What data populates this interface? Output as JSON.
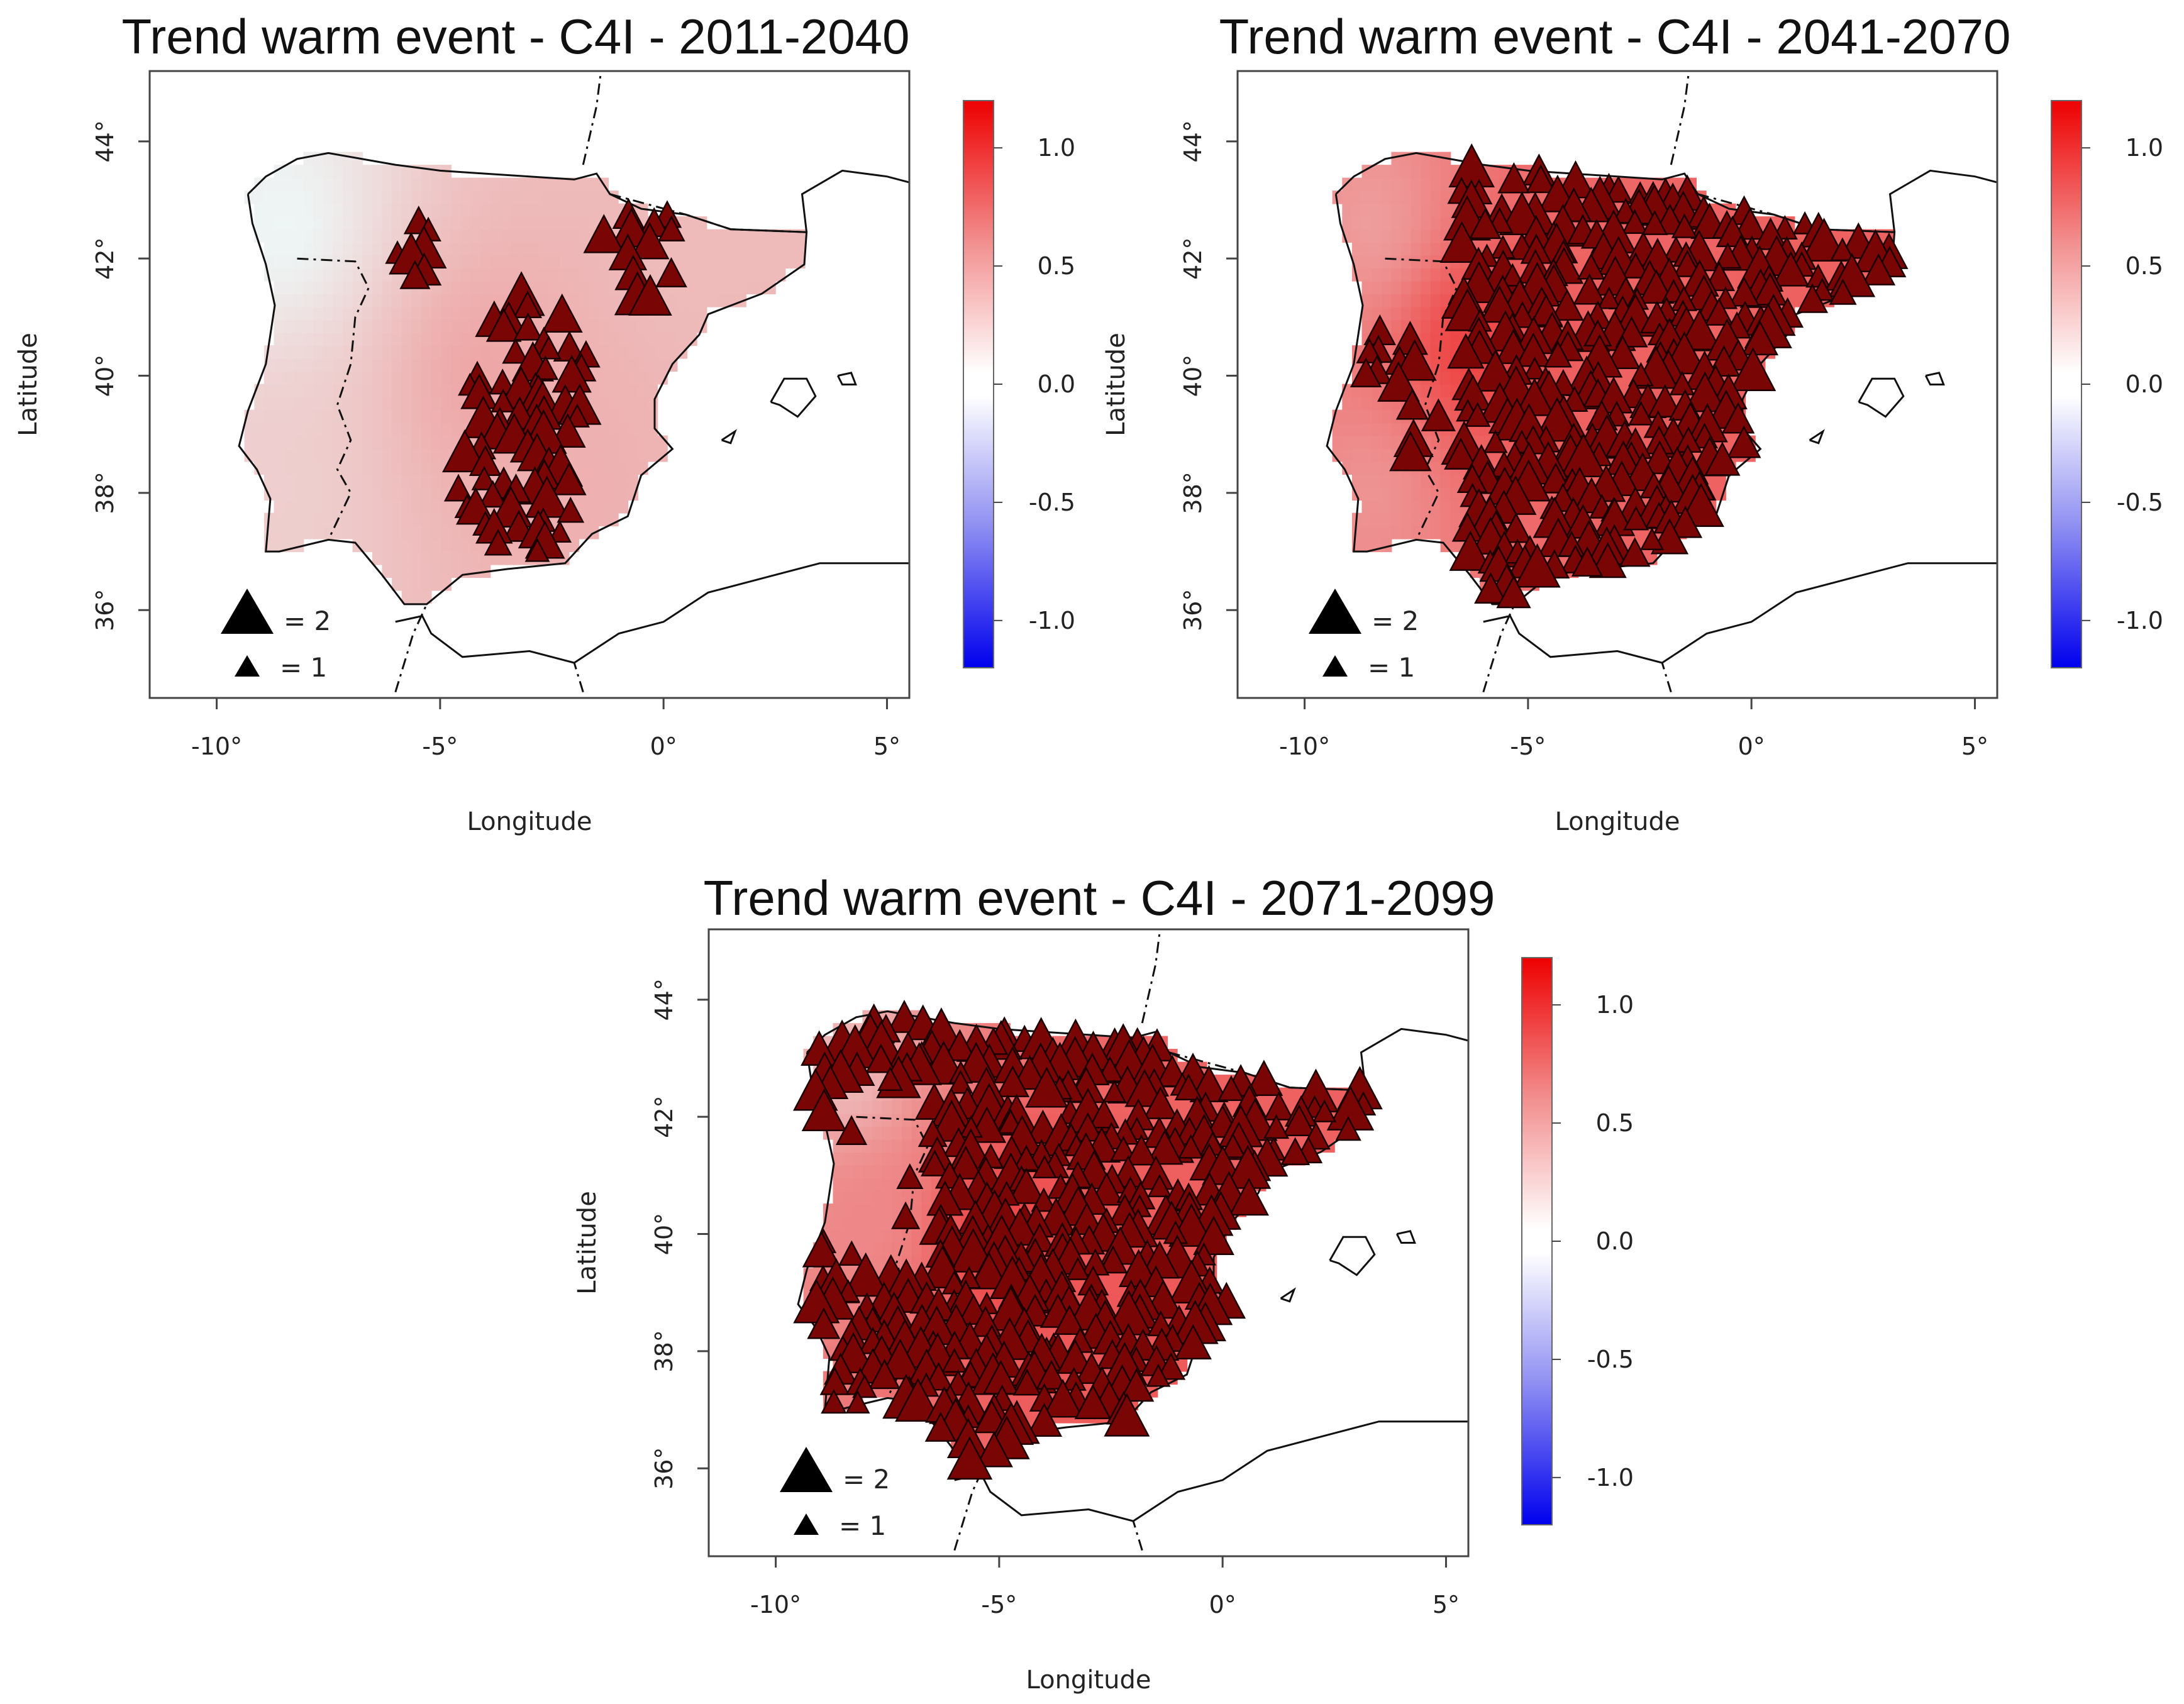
{
  "figure": {
    "colors": {
      "marker": "#7a0505",
      "marker_edge": "#1a0000",
      "cb_low": "#0000ee",
      "cb_mid": "#ffffff",
      "cb_high": "#ee0000"
    }
  },
  "chart_data": [
    {
      "type": "scatter",
      "title": "Trend warm event - C4I - 2011-2040",
      "xlabel": "Longitude",
      "ylabel": "Latitude",
      "xlim": [
        -11.5,
        5.5
      ],
      "ylim": [
        34.5,
        45.2
      ],
      "x_ticks": [
        "-10°",
        "-5°",
        "0°",
        "5°"
      ],
      "y_ticks": [
        "36°",
        "38°",
        "40°",
        "42°",
        "44°"
      ],
      "colorbar": {
        "range": [
          -1.2,
          1.2
        ],
        "ticks": [
          "1.0",
          "0.5",
          "0.0",
          "-0.5",
          "-1.0"
        ]
      },
      "legend": {
        "large": "= 2",
        "small": "= 1"
      },
      "fill_trend": [
        {
          "lon": -8.5,
          "lat": 42.6,
          "value": 0.05
        },
        {
          "lon": -8.5,
          "lat": 38.0,
          "value": 0.25
        },
        {
          "lon": -4.0,
          "lat": 40.0,
          "value": 0.45
        },
        {
          "lon": -2.0,
          "lat": 38.0,
          "value": 0.4
        },
        {
          "lon": 0.5,
          "lat": 42.0,
          "value": 0.35
        }
      ],
      "triangle_density": 0.28,
      "triangle_regions": [
        {
          "lon": -5.5,
          "lat": 42.2,
          "r": 0.6
        },
        {
          "lon": -0.5,
          "lat": 42.2,
          "r": 1.0
        },
        {
          "lon": -3.0,
          "lat": 40.0,
          "r": 1.4
        },
        {
          "lon": -3.2,
          "lat": 38.2,
          "r": 1.4
        }
      ]
    },
    {
      "type": "scatter",
      "title": "Trend warm event - C4I - 2041-2070",
      "xlabel": "Longitude",
      "ylabel": "Latitude",
      "xlim": [
        -11.5,
        5.5
      ],
      "ylim": [
        34.5,
        45.2
      ],
      "x_ticks": [
        "-10°",
        "-5°",
        "0°",
        "5°"
      ],
      "y_ticks": [
        "36°",
        "38°",
        "40°",
        "42°",
        "44°"
      ],
      "colorbar": {
        "range": [
          -1.2,
          1.2
        ],
        "ticks": [
          "1.0",
          "0.5",
          "0.0",
          "-0.5",
          "-1.0"
        ]
      },
      "legend": {
        "large": "= 2",
        "small": "= 1"
      },
      "fill_trend": [
        {
          "lon": -8.5,
          "lat": 42.6,
          "value": 0.5
        },
        {
          "lon": -8.5,
          "lat": 38.0,
          "value": 0.55
        },
        {
          "lon": -6.3,
          "lat": 40.5,
          "value": 0.95
        },
        {
          "lon": -2.0,
          "lat": 39.0,
          "value": 0.8
        },
        {
          "lon": 1.5,
          "lat": 41.5,
          "value": 0.8
        }
      ],
      "triangle_density": 0.92,
      "dense_from_lon": -6.6,
      "triangle_regions": [
        {
          "lon": -8.0,
          "lat": 40.3,
          "r": 0.8
        },
        {
          "lon": -7.5,
          "lat": 39.0,
          "r": 0.6
        }
      ]
    },
    {
      "type": "scatter",
      "title": "Trend warm event - C4I - 2071-2099",
      "xlabel": "Longitude",
      "ylabel": "Latitude",
      "xlim": [
        -11.5,
        5.5
      ],
      "ylim": [
        34.5,
        45.2
      ],
      "x_ticks": [
        "-10°",
        "-5°",
        "0°",
        "5°"
      ],
      "y_ticks": [
        "36°",
        "38°",
        "40°",
        "42°",
        "44°"
      ],
      "colorbar": {
        "range": [
          -1.2,
          1.2
        ],
        "ticks": [
          "1.0",
          "0.5",
          "0.0",
          "-0.5",
          "-1.0"
        ]
      },
      "legend": {
        "large": "= 2",
        "small": "= 1"
      },
      "fill_trend": [
        {
          "lon": -8.5,
          "lat": 42.8,
          "value": 0.35
        },
        {
          "lon": -8.0,
          "lat": 40.3,
          "value": 0.6
        },
        {
          "lon": -5.0,
          "lat": 40.0,
          "value": 0.95
        },
        {
          "lon": -2.0,
          "lat": 38.5,
          "value": 0.85
        },
        {
          "lon": 2.0,
          "lat": 41.8,
          "value": 0.8
        }
      ],
      "triangle_density": 0.95,
      "dense_from_lon": -9.2,
      "sparse_zone": {
        "lon_min": -8.8,
        "lon_max": -6.6,
        "lat_min": 39.3,
        "lat_max": 42.4
      }
    }
  ]
}
